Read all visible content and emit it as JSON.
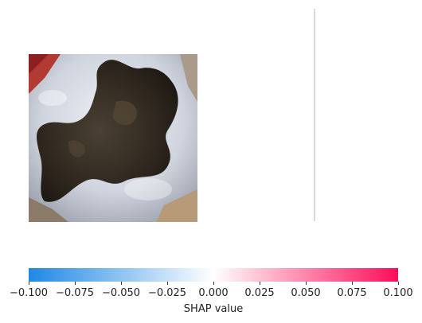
{
  "image": {
    "subject": "tooth-occlusal-cavity-photo",
    "colors": {
      "enamel": "#d9dde6",
      "caries": "#3b3227",
      "gum": "#b8322e"
    }
  },
  "shap_overlay": {
    "values_shown": "near-zero"
  },
  "colorbar": {
    "label": "SHAP value",
    "range": [
      -0.1,
      0.1
    ],
    "ticks": [
      "−0.100",
      "−0.075",
      "−0.050",
      "−0.025",
      "0.000",
      "0.025",
      "0.050",
      "0.075",
      "0.100"
    ],
    "colors": {
      "negative": "#1e88e5",
      "zero": "#ffffff",
      "positive": "#ff0d57"
    }
  }
}
